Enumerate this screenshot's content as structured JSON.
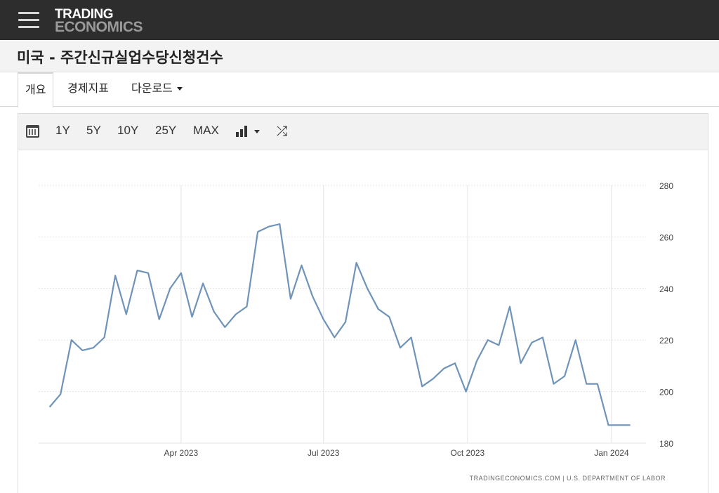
{
  "header": {
    "logo_line1": "TRADING",
    "logo_line2": "ECONOMICS",
    "menu_icon": "hamburger-menu-icon"
  },
  "page": {
    "title": "미국 - 주간신규실업수당신청건수"
  },
  "tabs": [
    {
      "label": "개요",
      "active": true
    },
    {
      "label": "경제지표",
      "active": false
    },
    {
      "label": "다운로드",
      "active": false,
      "dropdown": true
    }
  ],
  "toolbar": {
    "calendar_icon": "calendar-icon",
    "ranges": [
      "1Y",
      "5Y",
      "10Y",
      "25Y",
      "MAX"
    ],
    "chart_type_icon": "bar-chart-icon",
    "compare_icon": "shuffle-icon"
  },
  "colors": {
    "line": "#6f93b9",
    "header_bg": "#2d2d2d",
    "grid": "#e4e4e4"
  },
  "chart_data": {
    "type": "line",
    "title": "",
    "xlabel": "",
    "ylabel": "",
    "ylim": [
      180,
      280
    ],
    "yticks": [
      180,
      200,
      220,
      240,
      260,
      280
    ],
    "axis_side": "right",
    "grid": true,
    "x_tick_labels": [
      {
        "label": "Apr 2023",
        "date": "2023-04-01"
      },
      {
        "label": "Jul 2023",
        "date": "2023-07-01"
      },
      {
        "label": "Oct 2023",
        "date": "2023-10-01"
      },
      {
        "label": "Jan 2024",
        "date": "2024-01-01"
      }
    ],
    "series": [
      {
        "name": "",
        "x": [
          "2023-01-07",
          "2023-01-14",
          "2023-01-21",
          "2023-01-28",
          "2023-02-04",
          "2023-02-11",
          "2023-02-18",
          "2023-02-25",
          "2023-03-04",
          "2023-03-11",
          "2023-03-18",
          "2023-03-25",
          "2023-04-01",
          "2023-04-08",
          "2023-04-15",
          "2023-04-22",
          "2023-04-29",
          "2023-05-06",
          "2023-05-13",
          "2023-05-20",
          "2023-05-27",
          "2023-06-03",
          "2023-06-10",
          "2023-06-17",
          "2023-06-24",
          "2023-07-01",
          "2023-07-08",
          "2023-07-15",
          "2023-07-22",
          "2023-07-29",
          "2023-08-05",
          "2023-08-12",
          "2023-08-19",
          "2023-08-26",
          "2023-09-02",
          "2023-09-09",
          "2023-09-16",
          "2023-09-23",
          "2023-09-30",
          "2023-10-07",
          "2023-10-14",
          "2023-10-21",
          "2023-10-28",
          "2023-11-04",
          "2023-11-11",
          "2023-11-18",
          "2023-11-25",
          "2023-12-02",
          "2023-12-09",
          "2023-12-16",
          "2023-12-23",
          "2023-12-30",
          "2024-01-06",
          "2024-01-13"
        ],
        "values": [
          194,
          199,
          220,
          216,
          217,
          221,
          245,
          230,
          247,
          246,
          228,
          240,
          246,
          229,
          242,
          231,
          225,
          230,
          233,
          262,
          264,
          265,
          236,
          249,
          237,
          228,
          221,
          227,
          250,
          240,
          232,
          229,
          217,
          221,
          202,
          205,
          209,
          211,
          200,
          212,
          220,
          218,
          233,
          211,
          219,
          221,
          203,
          206,
          220,
          203,
          203,
          187,
          187,
          187
        ]
      }
    ],
    "source": "TRADINGECONOMICS.COM  |  U.S. DEPARTMENT OF LABOR"
  }
}
